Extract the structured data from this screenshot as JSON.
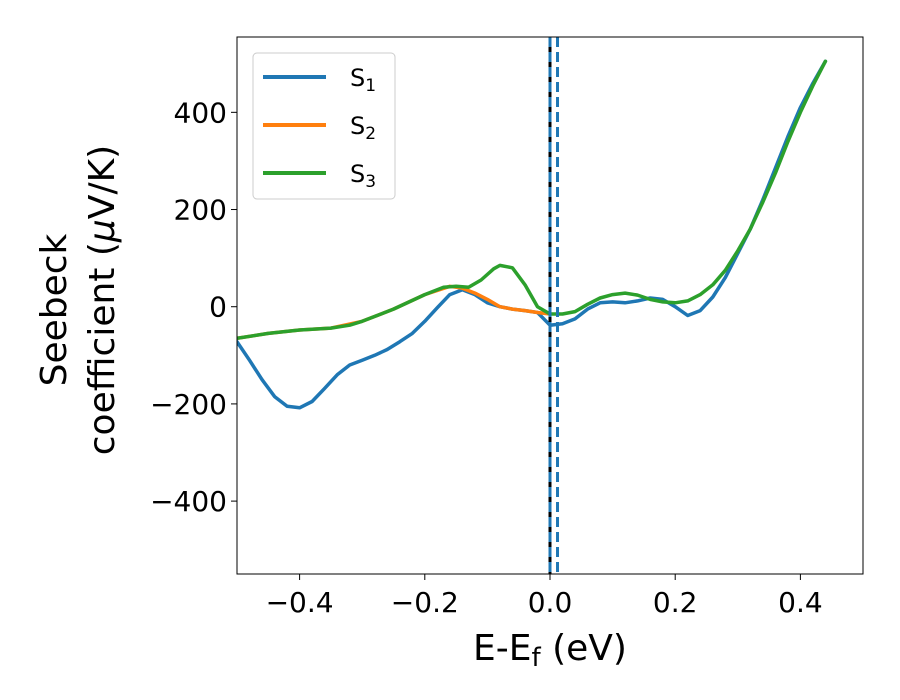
{
  "chart_data": {
    "type": "line",
    "xlabel": "E-E",
    "xlabel_sub": "f",
    "xlabel_unit": " (eV)",
    "ylabel_line1": "Seebeck",
    "ylabel_line2": "coefficient  (",
    "ylabel_mu": "μ",
    "ylabel_unit": "V/K)",
    "xlim": [
      -0.5,
      0.5
    ],
    "ylim": [
      -550,
      555
    ],
    "x_ticks": [
      -0.4,
      -0.2,
      0.0,
      0.2,
      0.4
    ],
    "x_tick_labels": [
      "−0.4",
      "−0.2",
      "0.0",
      "0.2",
      "0.4"
    ],
    "y_ticks": [
      -400,
      -200,
      0,
      200,
      400
    ],
    "y_tick_labels": [
      "−400",
      "−200",
      "0",
      "200",
      "400"
    ],
    "grid": false,
    "legend_position": "top-left",
    "vertical_lines": [
      {
        "x": 0.0,
        "style": "solid",
        "color": "#000000"
      },
      {
        "x": 0.0,
        "style": "dashed",
        "color": "#1f77b4"
      },
      {
        "x": 0.012,
        "style": "dashed",
        "color": "#1f77b4"
      }
    ],
    "series": [
      {
        "name": "S",
        "sub": "1",
        "color": "#1f77b4",
        "x": [
          -0.5,
          -0.48,
          -0.46,
          -0.44,
          -0.42,
          -0.4,
          -0.38,
          -0.36,
          -0.34,
          -0.32,
          -0.3,
          -0.28,
          -0.26,
          -0.24,
          -0.22,
          -0.2,
          -0.18,
          -0.16,
          -0.14,
          -0.12,
          -0.1,
          -0.08,
          -0.06,
          -0.04,
          -0.02,
          0.0,
          0.02,
          0.04,
          0.06,
          0.08,
          0.1,
          0.12,
          0.14,
          0.16,
          0.18,
          0.2,
          0.22,
          0.24,
          0.26,
          0.28,
          0.3,
          0.32,
          0.34,
          0.36,
          0.38,
          0.4,
          0.42,
          0.44
        ],
        "y": [
          -72,
          -110,
          -150,
          -185,
          -205,
          -208,
          -195,
          -168,
          -140,
          -120,
          -110,
          -100,
          -88,
          -72,
          -55,
          -30,
          -2,
          25,
          35,
          25,
          8,
          0,
          -5,
          -8,
          -12,
          -38,
          -35,
          -25,
          -5,
          8,
          10,
          8,
          12,
          18,
          15,
          0,
          -18,
          -8,
          20,
          60,
          110,
          160,
          220,
          285,
          350,
          410,
          460,
          505
        ]
      },
      {
        "name": "S",
        "sub": "2",
        "color": "#ff7f0e",
        "x": [
          -0.5,
          -0.45,
          -0.4,
          -0.35,
          -0.3,
          -0.25,
          -0.2,
          -0.16,
          -0.14,
          -0.12,
          -0.1,
          -0.08,
          -0.06,
          -0.04,
          -0.02,
          0.0
        ],
        "y": [
          -65,
          -55,
          -48,
          -44,
          -30,
          -5,
          25,
          42,
          38,
          28,
          15,
          0,
          -5,
          -8,
          -12,
          -15
        ]
      },
      {
        "name": "S",
        "sub": "3",
        "color": "#2ca02c",
        "x": [
          -0.5,
          -0.45,
          -0.4,
          -0.35,
          -0.32,
          -0.3,
          -0.25,
          -0.2,
          -0.17,
          -0.15,
          -0.13,
          -0.11,
          -0.09,
          -0.08,
          -0.06,
          -0.04,
          -0.02,
          0.0,
          0.02,
          0.04,
          0.06,
          0.08,
          0.1,
          0.12,
          0.14,
          0.16,
          0.18,
          0.2,
          0.22,
          0.24,
          0.26,
          0.28,
          0.3,
          0.32,
          0.34,
          0.36,
          0.38,
          0.4,
          0.42,
          0.44
        ],
        "y": [
          -65,
          -55,
          -48,
          -44,
          -38,
          -30,
          -5,
          25,
          40,
          42,
          40,
          55,
          78,
          85,
          80,
          45,
          0,
          -15,
          -15,
          -10,
          5,
          18,
          25,
          28,
          24,
          15,
          10,
          8,
          12,
          25,
          45,
          75,
          115,
          160,
          215,
          275,
          340,
          400,
          455,
          505
        ]
      }
    ]
  }
}
